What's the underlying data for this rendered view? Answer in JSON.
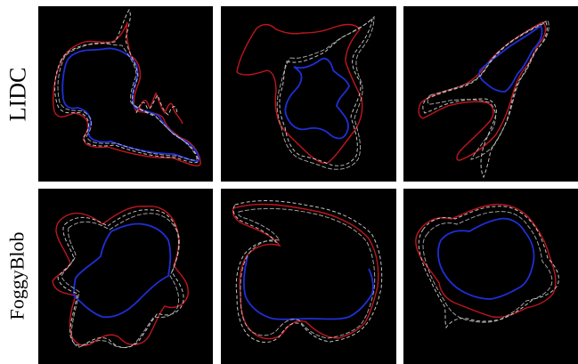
{
  "rows": [
    {
      "label": "LIDC",
      "panels": 3
    },
    {
      "label": "FoggyBlob",
      "panels": 3
    }
  ],
  "legend_colors": {
    "red": "#c0161d",
    "blue": "#1f2fd6",
    "grey_dashed": "#d8d8d8",
    "background": "#000000"
  }
}
